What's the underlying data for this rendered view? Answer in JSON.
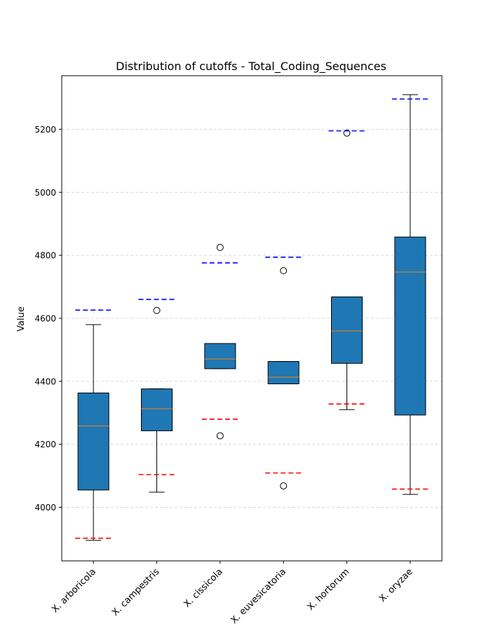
{
  "chart_data": {
    "type": "box",
    "title": "Distribution of cutoffs - Total_Coding_Sequences",
    "xlabel": "",
    "ylabel": "Value",
    "ylim": [
      3830,
      5370
    ],
    "yticks": [
      4000,
      4200,
      4400,
      4600,
      4800,
      5000,
      5200
    ],
    "grid": "y-dashed",
    "colors": {
      "box": "#1f77b4",
      "median": "#ff7f0e",
      "upper_cutoff": "#0000ff",
      "lower_cutoff": "#ff0000",
      "grid": "#cccccc"
    },
    "categories": [
      "X. arboricola",
      "X. campestris",
      "X. cissicola",
      "X. euvesicatoria",
      "X. hortorum",
      "X. oryzae"
    ],
    "boxes": [
      {
        "whislo": 3895,
        "q1": 4055,
        "med": 4258,
        "q3": 4363,
        "whishi": 4580,
        "fliers": []
      },
      {
        "whislo": 4048,
        "q1": 4243,
        "med": 4313,
        "q3": 4376,
        "whishi": 4376,
        "fliers": [
          4625
        ]
      },
      {
        "whislo": 4440,
        "q1": 4440,
        "med": 4471,
        "q3": 4520,
        "whishi": 4520,
        "fliers": [
          4825,
          4227
        ]
      },
      {
        "whislo": 4392,
        "q1": 4392,
        "med": 4413,
        "q3": 4463,
        "whishi": 4463,
        "fliers": [
          4751,
          4068
        ]
      },
      {
        "whislo": 4310,
        "q1": 4457,
        "med": 4560,
        "q3": 4668,
        "whishi": 4668,
        "fliers": [
          5188
        ]
      },
      {
        "whislo": 4041,
        "q1": 4293,
        "med": 4747,
        "q3": 4858,
        "whishi": 5310,
        "fliers": []
      }
    ],
    "upper_cutoffs": [
      4626,
      4660,
      4776,
      4794,
      5195,
      5296
    ],
    "lower_cutoffs": [
      3902,
      4104,
      4280,
      4109,
      4328,
      4058
    ]
  }
}
